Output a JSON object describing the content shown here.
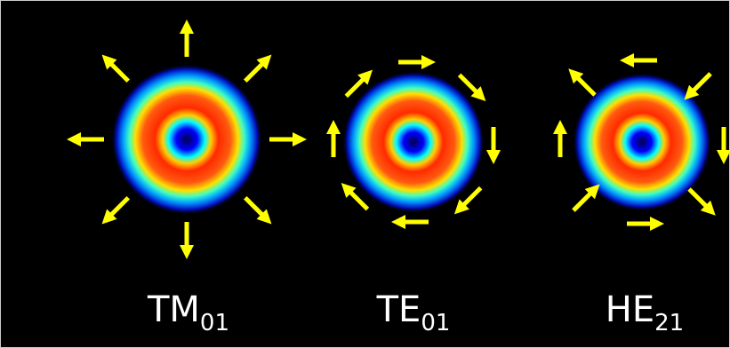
{
  "panels": [
    {
      "label": "TM",
      "subscript": "01"
    },
    {
      "label": "TE",
      "subscript": "01"
    },
    {
      "label": "HE",
      "subscript": "21"
    }
  ]
}
